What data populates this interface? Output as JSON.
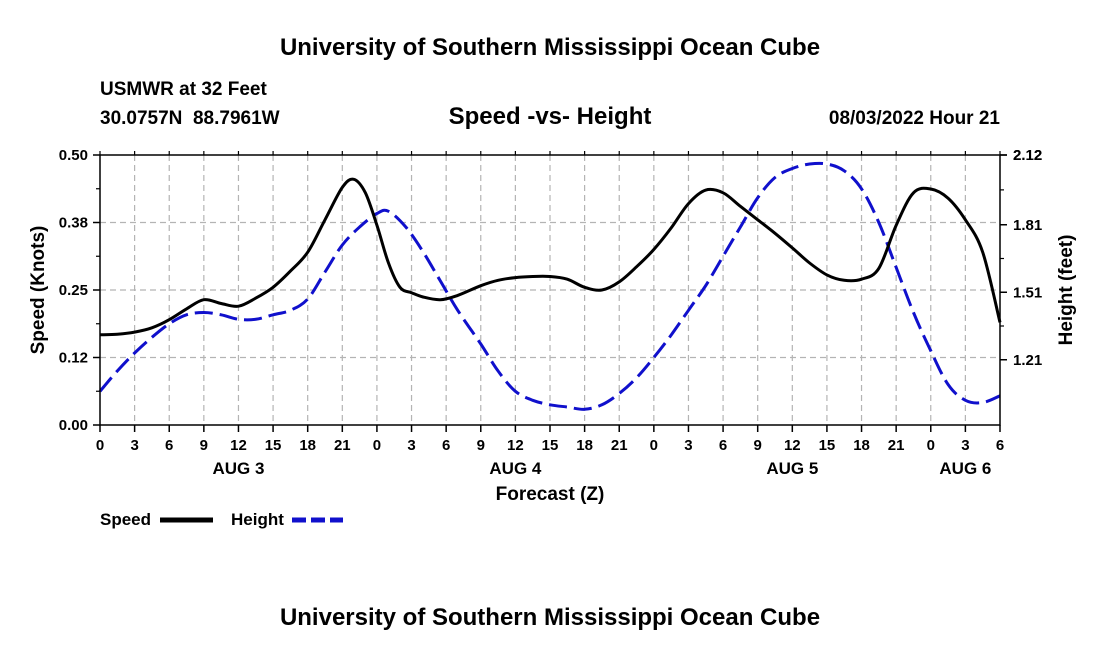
{
  "header": {
    "title": "University of Southern Mississippi Ocean Cube",
    "station": "USMWR at 32 Feet",
    "coords": "30.0757N  88.7961W",
    "plot_title": "Speed -vs- Height",
    "date": "08/03/2022 Hour 21"
  },
  "footer": {
    "title": "University of Southern Mississippi Ocean Cube"
  },
  "legend": {
    "speed_label": "Speed",
    "height_label": "Height"
  },
  "colors": {
    "speed": "#000000",
    "height": "#1010cc",
    "grid": "#b4b4b4"
  },
  "chart_data": {
    "type": "line",
    "title": "Speed -vs- Height",
    "xlabel": "Forecast (Z)",
    "ylabel_left": "Speed (Knots)",
    "ylabel_right": "Height (feet)",
    "x_unit": "hours from Aug 3 00Z",
    "xlim": [
      0,
      78
    ],
    "ylim_left": [
      0,
      0.5
    ],
    "ylim_right": [
      0.92,
      2.12
    ],
    "left_ticks": [
      "0.00",
      "0.12",
      "0.25",
      "0.38",
      "0.50"
    ],
    "right_ticks": [
      "1.21",
      "1.51",
      "1.81",
      "2.12"
    ],
    "x_tick_labels": [
      "0",
      "3",
      "6",
      "9",
      "12",
      "15",
      "18",
      "21",
      "0",
      "3",
      "6",
      "9",
      "12",
      "15",
      "18",
      "21",
      "0",
      "3",
      "6",
      "9",
      "12",
      "15",
      "18",
      "21",
      "0",
      "3",
      "6"
    ],
    "day_labels": [
      {
        "hour": 12,
        "label": "AUG 3"
      },
      {
        "hour": 36,
        "label": "AUG 4"
      },
      {
        "hour": 60,
        "label": "AUG 5"
      },
      {
        "hour": 75,
        "label": "AUG 6"
      }
    ],
    "legend_position": "bottom-left",
    "grid": true,
    "series": [
      {
        "name": "Speed",
        "axis": "left",
        "style": "solid",
        "x": [
          0,
          1.5,
          3,
          4.5,
          6,
          7.5,
          9,
          10.5,
          12,
          13.5,
          15,
          16.5,
          18,
          19.5,
          21,
          22,
          23,
          24,
          25,
          26,
          27,
          28,
          29.5,
          31,
          33,
          34.5,
          36,
          37.5,
          39,
          40.5,
          42,
          43.5,
          45,
          46.5,
          48,
          49.5,
          51,
          52.5,
          54,
          55.5,
          57,
          58.5,
          60,
          61.5,
          63,
          64.5,
          66,
          67.5,
          69,
          70.5,
          72,
          73.5,
          75,
          76.5,
          78
        ],
        "y": [
          0.167,
          0.168,
          0.172,
          0.18,
          0.195,
          0.215,
          0.232,
          0.225,
          0.22,
          0.235,
          0.255,
          0.285,
          0.32,
          0.38,
          0.44,
          0.455,
          0.43,
          0.37,
          0.3,
          0.255,
          0.245,
          0.237,
          0.232,
          0.24,
          0.258,
          0.268,
          0.273,
          0.275,
          0.275,
          0.27,
          0.255,
          0.25,
          0.265,
          0.293,
          0.325,
          0.365,
          0.41,
          0.435,
          0.43,
          0.405,
          0.38,
          0.355,
          0.328,
          0.3,
          0.278,
          0.268,
          0.27,
          0.29,
          0.37,
          0.43,
          0.437,
          0.42,
          0.38,
          0.32,
          0.19
        ]
      },
      {
        "name": "Height",
        "axis": "right",
        "style": "dashed",
        "x": [
          0,
          1.5,
          3,
          4.5,
          6,
          7.5,
          9,
          10.5,
          12,
          13.5,
          15,
          16.5,
          18,
          19.5,
          21,
          22.5,
          24,
          25,
          26.5,
          28,
          29.5,
          31,
          33,
          34.5,
          36,
          37.5,
          39,
          40.5,
          42,
          43.5,
          45,
          46.5,
          48,
          49.5,
          51,
          52.5,
          54,
          55.5,
          57,
          58.5,
          60,
          61.5,
          63,
          64.5,
          66,
          67.5,
          69,
          70.5,
          72,
          73.5,
          75,
          76.5,
          78
        ],
        "y": [
          1.07,
          1.16,
          1.24,
          1.31,
          1.37,
          1.41,
          1.42,
          1.41,
          1.39,
          1.39,
          1.41,
          1.43,
          1.48,
          1.6,
          1.72,
          1.8,
          1.86,
          1.87,
          1.8,
          1.69,
          1.56,
          1.43,
          1.28,
          1.16,
          1.07,
          1.03,
          1.01,
          1,
          0.99,
          1.01,
          1.06,
          1.13,
          1.22,
          1.32,
          1.43,
          1.54,
          1.67,
          1.8,
          1.93,
          2.02,
          2.06,
          2.08,
          2.08,
          2.05,
          1.97,
          1.82,
          1.62,
          1.42,
          1.25,
          1.1,
          1.03,
          1.02,
          1.05
        ]
      }
    ]
  }
}
